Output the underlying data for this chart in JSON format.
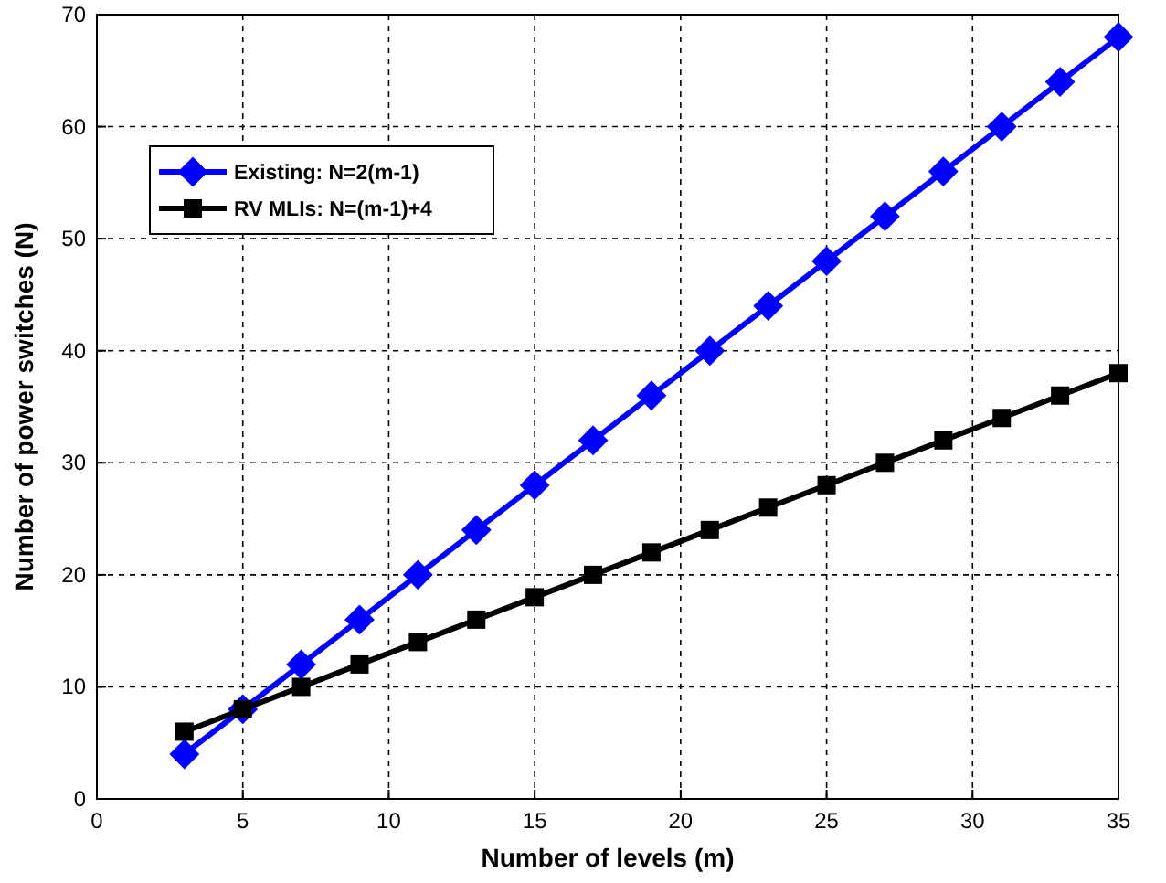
{
  "chart_data": {
    "type": "line",
    "xlabel": "Number of levels (m)",
    "ylabel": "Number of power switches (N)",
    "x": [
      3,
      5,
      7,
      9,
      11,
      13,
      15,
      17,
      19,
      21,
      23,
      25,
      27,
      29,
      31,
      33,
      35
    ],
    "series": [
      {
        "name": "Existing: N=2(m-1)",
        "color": "#0000ff",
        "marker": "diamond",
        "values": [
          4,
          8,
          12,
          16,
          20,
          24,
          28,
          32,
          36,
          40,
          44,
          48,
          52,
          56,
          60,
          64,
          68
        ]
      },
      {
        "name": "RV MLIs: N=(m-1)+4",
        "color": "#000000",
        "marker": "square",
        "values": [
          6,
          8,
          10,
          12,
          14,
          16,
          18,
          20,
          22,
          24,
          26,
          28,
          30,
          32,
          34,
          36,
          38
        ]
      }
    ],
    "xlim": [
      0,
      35
    ],
    "xticks": [
      0,
      5,
      10,
      15,
      20,
      25,
      30,
      35
    ],
    "ylim": [
      0,
      70
    ],
    "yticks": [
      0,
      10,
      20,
      30,
      40,
      50,
      60,
      70
    ],
    "grid": true,
    "legend": "top left",
    "line_style": "solid"
  }
}
